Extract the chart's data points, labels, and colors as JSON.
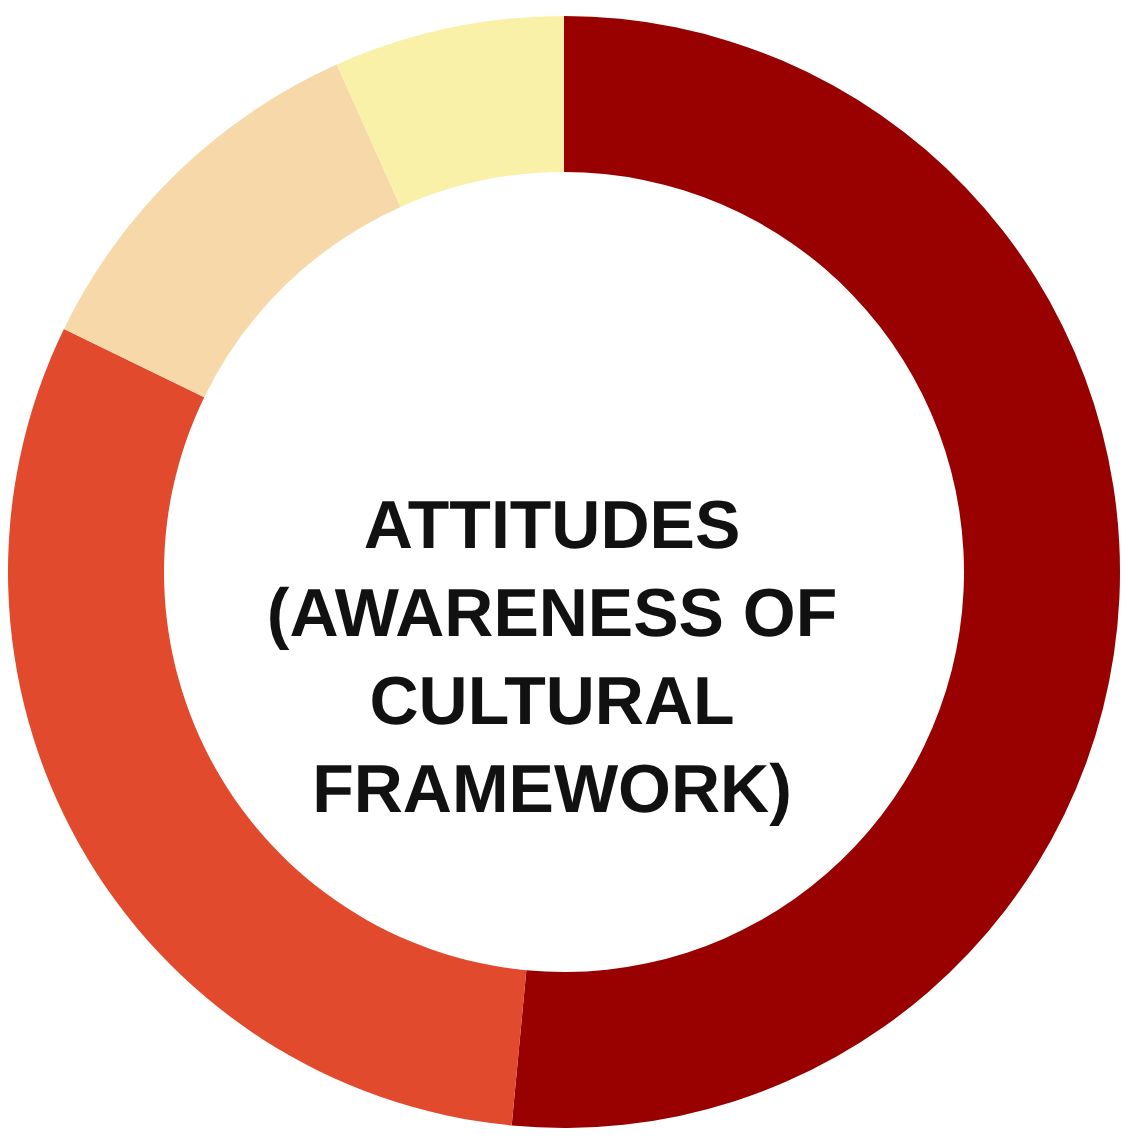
{
  "chart_data": {
    "type": "donut",
    "title": "ATTITUDES (AWARENESS OF CULTURAL FRAMEWORK)",
    "categories": [
      null,
      null,
      null,
      null
    ],
    "values": [
      51.5,
      30.7,
      11.1,
      6.7
    ],
    "colors": [
      "#990000",
      "#e24a2e",
      "#f6d8a9",
      "#faf1a9"
    ],
    "legend": false
  }
}
